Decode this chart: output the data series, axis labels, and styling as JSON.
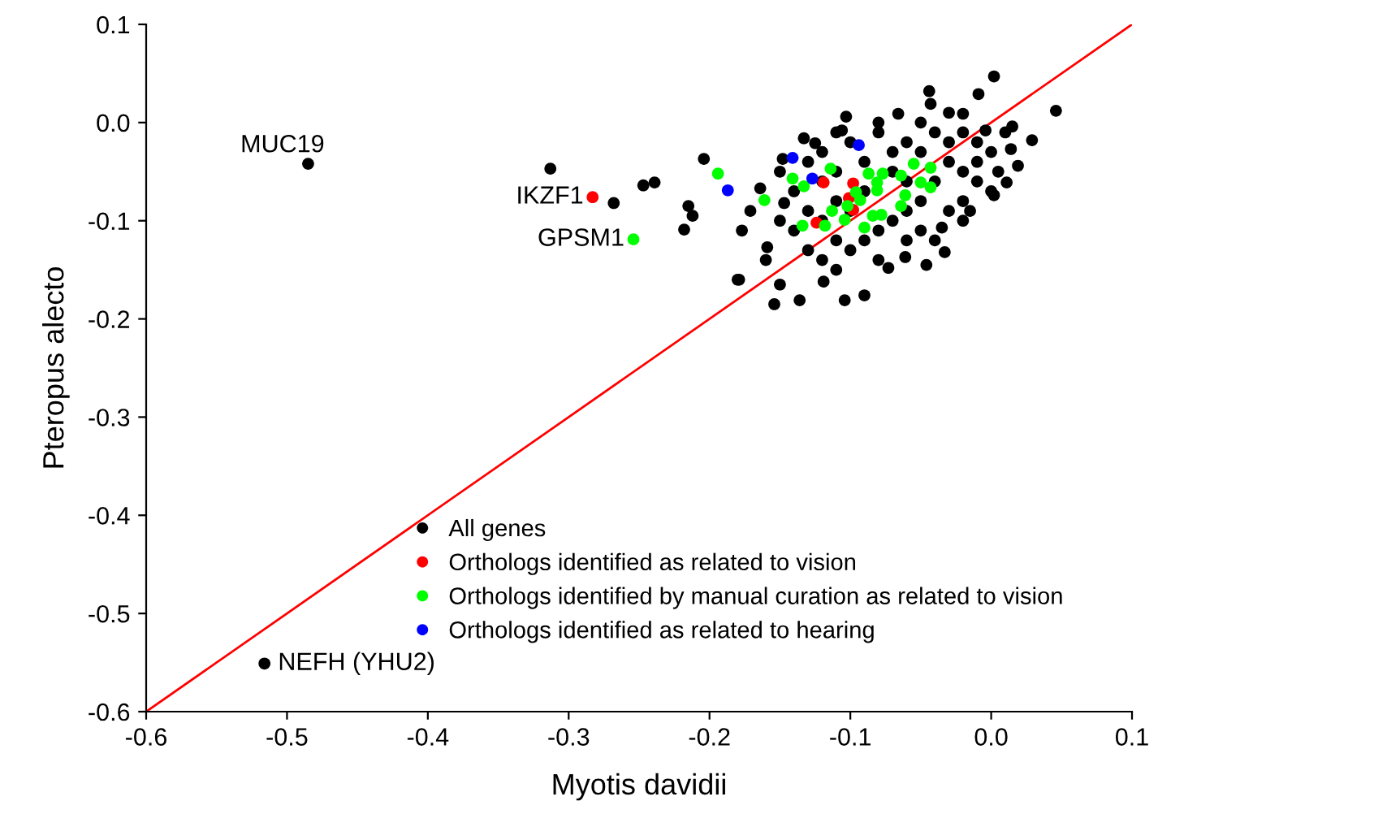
{
  "chart_data": {
    "type": "scatter",
    "xlabel": "Myotis davidii",
    "ylabel": "Pteropus alecto",
    "xlim": [
      -0.6,
      0.1
    ],
    "ylim": [
      -0.6,
      0.1
    ],
    "xticks": [
      -0.6,
      -0.5,
      -0.4,
      -0.3,
      -0.2,
      -0.1,
      {
        "value": 0,
        "label": "0.0"
      },
      0.1
    ],
    "yticks": [
      -0.6,
      -0.5,
      -0.4,
      -0.3,
      -0.2,
      -0.1,
      {
        "value": 0,
        "label": "0.0"
      },
      0.1
    ],
    "grid": false,
    "legend": "bottom right",
    "marker": "circle",
    "series": [
      {
        "name": "All genes",
        "color": "#000000",
        "x": [
          -0.485,
          -0.516,
          -0.313,
          -0.268,
          -0.247,
          -0.239,
          -0.204,
          -0.215,
          -0.212,
          -0.218,
          -0.18,
          0.002,
          -0.044,
          -0.009,
          0.046,
          -0.043,
          -0.103,
          0.015,
          0.029,
          0.014,
          0.019,
          0.011,
          0.002,
          -0.015,
          -0.035,
          -0.033,
          -0.046,
          -0.061,
          -0.073,
          -0.09,
          -0.104,
          -0.119,
          -0.136,
          -0.154,
          -0.15,
          -0.179,
          -0.177,
          -0.171,
          -0.159,
          -0.164,
          -0.147,
          -0.148,
          -0.133,
          -0.125,
          -0.106,
          -0.066,
          -0.02,
          -0.004,
          -0.12,
          -0.11,
          -0.1,
          -0.09,
          -0.08,
          -0.07,
          -0.06,
          -0.05,
          -0.04,
          -0.03,
          -0.02,
          -0.01,
          0.0,
          0.01,
          0.005,
          -0.01,
          -0.02,
          -0.03,
          -0.04,
          -0.05,
          -0.06,
          -0.07,
          -0.08,
          -0.09,
          -0.1,
          -0.11,
          -0.12,
          -0.13,
          -0.14,
          -0.13,
          -0.12,
          -0.11,
          -0.08,
          -0.06,
          -0.05,
          -0.03,
          -0.02,
          -0.01,
          -0.03,
          -0.08,
          -0.11,
          -0.13,
          -0.14,
          -0.15,
          -0.16,
          -0.04,
          -0.02,
          0.0,
          -0.06,
          -0.09,
          -0.11,
          -0.07,
          -0.05,
          -0.1,
          -0.12,
          -0.15
        ],
        "values": [
          -0.042,
          -0.551,
          -0.047,
          -0.082,
          -0.064,
          -0.061,
          -0.037,
          -0.085,
          -0.095,
          -0.109,
          -0.16,
          0.047,
          0.032,
          0.029,
          0.012,
          0.019,
          0.006,
          -0.004,
          -0.018,
          -0.027,
          -0.044,
          -0.061,
          -0.074,
          -0.09,
          -0.107,
          -0.132,
          -0.145,
          -0.137,
          -0.148,
          -0.176,
          -0.181,
          -0.162,
          -0.181,
          -0.185,
          -0.165,
          -0.16,
          -0.11,
          -0.09,
          -0.127,
          -0.067,
          -0.082,
          -0.037,
          -0.016,
          -0.021,
          -0.008,
          0.009,
          0.009,
          -0.008,
          -0.03,
          -0.05,
          -0.02,
          -0.04,
          -0.01,
          -0.03,
          -0.02,
          0.0,
          -0.01,
          -0.02,
          -0.01,
          -0.02,
          -0.03,
          -0.01,
          -0.05,
          -0.06,
          -0.05,
          -0.04,
          -0.06,
          -0.08,
          -0.09,
          -0.1,
          -0.11,
          -0.12,
          -0.13,
          -0.12,
          -0.1,
          -0.09,
          -0.11,
          -0.13,
          -0.14,
          -0.15,
          -0.14,
          -0.12,
          -0.11,
          -0.09,
          -0.08,
          -0.04,
          0.01,
          0.0,
          -0.01,
          -0.04,
          -0.07,
          -0.1,
          -0.14,
          -0.12,
          -0.1,
          -0.07,
          -0.06,
          -0.07,
          -0.08,
          -0.05,
          -0.03,
          -0.09,
          -0.06,
          -0.05
        ]
      },
      {
        "name": "Orthologs identified as related to vision",
        "color": "#ff0000",
        "x": [
          -0.283,
          -0.119,
          -0.098,
          -0.101,
          -0.098,
          -0.124
        ],
        "values": [
          -0.076,
          -0.061,
          -0.062,
          -0.077,
          -0.089,
          -0.102
        ]
      },
      {
        "name": "Orthologs identified by manual curation as related to vision",
        "color": "#00ff00",
        "x": [
          -0.254,
          -0.194,
          -0.161,
          -0.141,
          -0.133,
          -0.114,
          -0.087,
          -0.081,
          -0.077,
          -0.064,
          -0.055,
          -0.043,
          -0.05,
          -0.043,
          -0.061,
          -0.064,
          -0.081,
          -0.093,
          -0.102,
          -0.113,
          -0.104,
          -0.09,
          -0.084,
          -0.078,
          -0.118,
          -0.134,
          -0.096
        ],
        "values": [
          -0.119,
          -0.052,
          -0.079,
          -0.057,
          -0.065,
          -0.047,
          -0.052,
          -0.061,
          -0.052,
          -0.054,
          -0.042,
          -0.046,
          -0.061,
          -0.066,
          -0.074,
          -0.085,
          -0.069,
          -0.079,
          -0.085,
          -0.09,
          -0.099,
          -0.107,
          -0.095,
          -0.094,
          -0.105,
          -0.105,
          -0.071
        ]
      },
      {
        "name": "Orthologs identified as related to hearing",
        "color": "#0000ff",
        "x": [
          -0.187,
          -0.141,
          -0.127,
          -0.094
        ],
        "values": [
          -0.069,
          -0.036,
          -0.057,
          -0.023
        ]
      },
      {
        "type": "line",
        "color": "#ff0000",
        "x": [
          -0.6,
          0.1
        ],
        "values": [
          -0.6,
          0.1
        ],
        "marker": "none"
      }
    ],
    "annotations": [
      {
        "text": "MUC19",
        "x": -0.485,
        "y": -0.042
      },
      {
        "text": "IKZF1",
        "x": -0.283,
        "y": -0.076
      },
      {
        "text": "GPSM1",
        "x": -0.254,
        "y": -0.119
      },
      {
        "text": "NEFH (YHU2)",
        "x": -0.516,
        "y": -0.551
      }
    ]
  }
}
